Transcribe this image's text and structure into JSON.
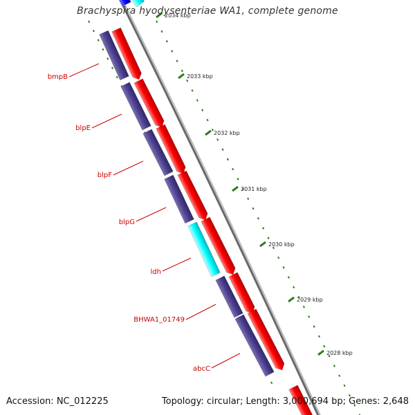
{
  "title": "Brachyspira hyodysenteriae WA1, complete genome",
  "footer": {
    "accession": "Accession: NC_012225",
    "summary": "Topology: circular; Length: 3,000,694 bp; Genes: 2,648"
  },
  "colors": {
    "forward_cds": "#ff0000",
    "reverse_cds": "#4b3f8f",
    "rna": "#00ffff",
    "tick": "#2e7d1e",
    "backbone": "#808080",
    "label": "#cc0000"
  },
  "tick_labels": [
    "2034 kbp",
    "2033 kbp",
    "2032 kbp",
    "2031 kbp",
    "2030 kbp",
    "2029 kbp",
    "2028 kbp"
  ],
  "gene_labels": [
    "bmpB",
    "blpE",
    "blpF",
    "blpG",
    "ldh",
    "BHWA1_01749",
    "abcC"
  ]
}
